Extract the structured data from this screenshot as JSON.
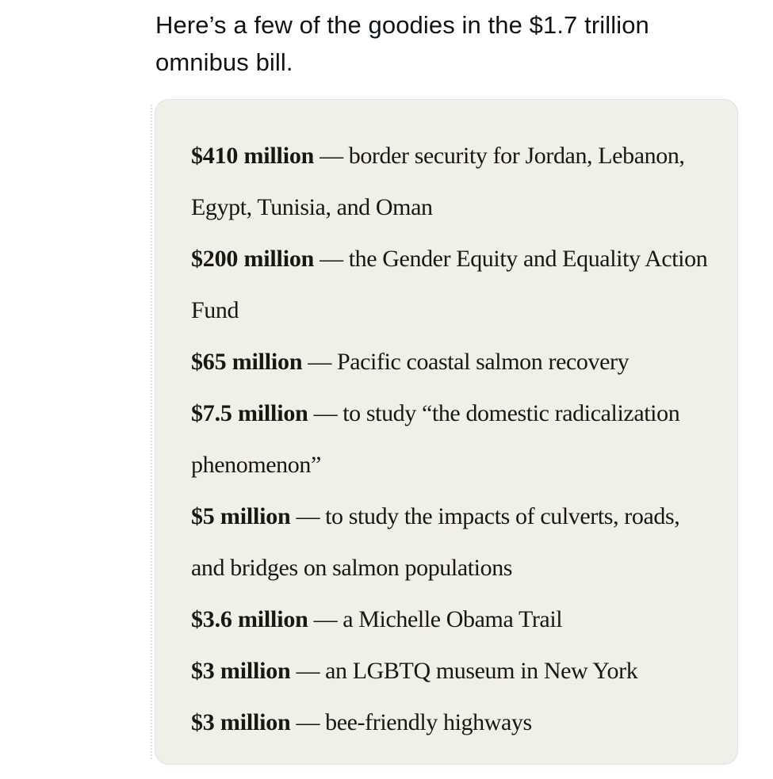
{
  "tweet": {
    "text": "Here’s a few of the goodies in the $1.7 trillion omnibus bill."
  },
  "card": {
    "items": [
      {
        "amount": "$410 million",
        "dash": "—",
        "description": "border security for Jordan, Lebanon, Egypt, Tunisia, and Oman"
      },
      {
        "amount": "$200 million",
        "dash": "—",
        "description": "the Gender Equity and Equality Action Fund"
      },
      {
        "amount": "$65 million",
        "dash": "—",
        "description": "Pacific coastal salmon recovery"
      },
      {
        "amount": "$7.5 million",
        "dash": "—",
        "description": "to study “the domestic radicalization phenomenon”"
      },
      {
        "amount": "$5 million",
        "dash": "—",
        "description": "to study the impacts of culverts, roads, and bridges on salmon populations"
      },
      {
        "amount": "$3.6 million",
        "dash": "—",
        "description": "a Michelle Obama Trail"
      },
      {
        "amount": "$3 million",
        "dash": "—",
        "description": "an LGBTQ museum in New York"
      },
      {
        "amount": "$3 million",
        "dash": "—",
        "description": "bee-friendly highways"
      }
    ]
  },
  "colors": {
    "page_background": "#ffffff",
    "card_background": "#f1f0e8",
    "card_border": "#dde3e2",
    "tweet_text": "#0f1419",
    "card_text": "#18180f"
  }
}
